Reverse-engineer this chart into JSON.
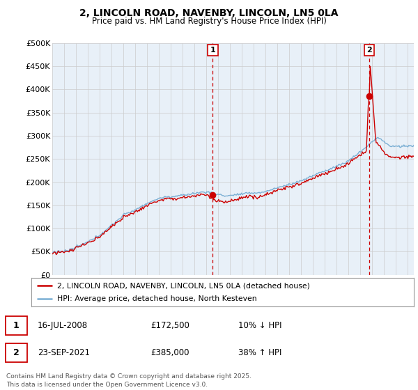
{
  "title1": "2, LINCOLN ROAD, NAVENBY, LINCOLN, LN5 0LA",
  "title2": "Price paid vs. HM Land Registry's House Price Index (HPI)",
  "ylabel_ticks": [
    "£0",
    "£50K",
    "£100K",
    "£150K",
    "£200K",
    "£250K",
    "£300K",
    "£350K",
    "£400K",
    "£450K",
    "£500K"
  ],
  "ytick_values": [
    0,
    50000,
    100000,
    150000,
    200000,
    250000,
    300000,
    350000,
    400000,
    450000,
    500000
  ],
  "xlim_start": 1995.0,
  "xlim_end": 2025.5,
  "ylim": [
    0,
    500000
  ],
  "legend_line1": "2, LINCOLN ROAD, NAVENBY, LINCOLN, LN5 0LA (detached house)",
  "legend_line2": "HPI: Average price, detached house, North Kesteven",
  "event1_label": "1",
  "event1_date": "16-JUL-2008",
  "event1_price": "£172,500",
  "event1_hpi": "10% ↓ HPI",
  "event1_x": 2008.54,
  "event1_y": 172500,
  "event2_label": "2",
  "event2_date": "23-SEP-2021",
  "event2_price": "£385,000",
  "event2_hpi": "38% ↑ HPI",
  "event2_x": 2021.73,
  "event2_y": 385000,
  "footer": "Contains HM Land Registry data © Crown copyright and database right 2025.\nThis data is licensed under the Open Government Licence v3.0.",
  "line_color_red": "#cc0000",
  "line_color_blue": "#7bafd4",
  "grid_color": "#cccccc",
  "bg_color": "#ffffff",
  "chart_bg": "#e8f0f8"
}
